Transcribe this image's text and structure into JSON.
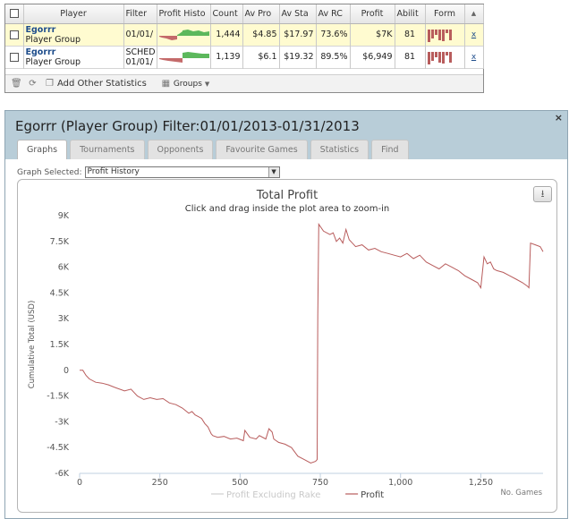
{
  "player_table": {
    "headers": [
      "Player",
      "Filter",
      "Profit Histo",
      "Count",
      "Av Pro",
      "Av Sta",
      "Av RC",
      "Profit",
      "Abilit",
      "Form"
    ],
    "rows": [
      {
        "player": "Egorrr",
        "group": "Player Group",
        "filter_line1": "01/01/",
        "filter_line2": "",
        "count": "1,444",
        "av_profit": "$4.85",
        "av_stake": "$17.97",
        "av_roi": "73.6%",
        "profit": "$7K",
        "ability": "81",
        "action": "x",
        "selected": true,
        "form": [
          14,
          10,
          6,
          12,
          13,
          4,
          12
        ]
      },
      {
        "player": "Egorrr",
        "group": "Player Group",
        "filter_line1": "SCHED",
        "filter_line2": "01/01/",
        "count": "1,139",
        "av_profit": "$6.1",
        "av_stake": "$19.32",
        "av_roi": "89.5%",
        "profit": "$6,949",
        "ability": "81",
        "action": "x",
        "selected": false,
        "form": [
          14,
          10,
          6,
          12,
          13,
          4,
          12
        ]
      }
    ],
    "toolbar": {
      "add_stats_label": "Add Other Statistics",
      "groups_label": "Groups"
    }
  },
  "window": {
    "title": "Egorrr (Player Group) Filter:01/01/2013-01/31/2013",
    "close_label": "×",
    "tabs": [
      "Graphs",
      "Tournaments",
      "Opponents",
      "Favourite Games",
      "Statistics",
      "Find"
    ],
    "active_tab": "Graphs",
    "graph_selected_label": "Graph Selected:",
    "graph_selected_value": "Profit History"
  },
  "chart_data": {
    "type": "line",
    "title": "Total Profit",
    "subtitle": "Click and drag inside the plot area to zoom-in",
    "ylabel": "Cumulative Total (USD)",
    "xlabel": "No. Games",
    "ylim": [
      -6000,
      9000
    ],
    "xlim": [
      0,
      1444
    ],
    "x_ticks": [
      0,
      250,
      500,
      750,
      1000,
      1250
    ],
    "x_tick_labels": [
      "0",
      "250",
      "500",
      "750",
      "1,000",
      "1,250"
    ],
    "y_ticks": [
      -6000,
      -4500,
      -3000,
      -1500,
      0,
      1500,
      3000,
      4500,
      6000,
      7500,
      9000
    ],
    "y_tick_labels": [
      "-6K",
      "-4.5K",
      "-3K",
      "-1.5K",
      "0",
      "1.5K",
      "3K",
      "4.5K",
      "6K",
      "7.5K",
      "9K"
    ],
    "grid": false,
    "legend": "bottom-center",
    "series": [
      {
        "name": "Profit Excluding Rake",
        "color": "#cfcfcf",
        "x": [],
        "y": []
      },
      {
        "name": "Profit",
        "color": "#b85c5c",
        "x": [
          0,
          10,
          20,
          30,
          50,
          70,
          90,
          110,
          140,
          160,
          180,
          200,
          220,
          240,
          260,
          280,
          300,
          320,
          340,
          350,
          360,
          370,
          380,
          390,
          400,
          410,
          415,
          430,
          450,
          470,
          490,
          510,
          515,
          530,
          550,
          560,
          580,
          590,
          600,
          605,
          620,
          640,
          660,
          680,
          700,
          720,
          735,
          740,
          742,
          745,
          760,
          780,
          790,
          800,
          810,
          820,
          830,
          840,
          850,
          860,
          880,
          900,
          920,
          940,
          960,
          980,
          1000,
          1020,
          1040,
          1060,
          1080,
          1100,
          1120,
          1140,
          1160,
          1180,
          1200,
          1220,
          1240,
          1250,
          1260,
          1270,
          1280,
          1290,
          1300,
          1320,
          1340,
          1360,
          1380,
          1395,
          1400,
          1405,
          1420,
          1435,
          1444
        ],
        "y": [
          0,
          0,
          -300,
          -500,
          -700,
          -750,
          -850,
          -1000,
          -1200,
          -1100,
          -1500,
          -1700,
          -1600,
          -1700,
          -1650,
          -1900,
          -2000,
          -2200,
          -2500,
          -2400,
          -2600,
          -2700,
          -2800,
          -3100,
          -3300,
          -3700,
          -3800,
          -3900,
          -3850,
          -4000,
          -3950,
          -4100,
          -3500,
          -3900,
          -4000,
          -3800,
          -4000,
          -3400,
          -3600,
          -4000,
          -4200,
          -4300,
          -4500,
          -5000,
          -5200,
          -5400,
          -5300,
          -5200,
          3200,
          8500,
          8100,
          7900,
          8000,
          7500,
          7700,
          7400,
          8200,
          7600,
          7400,
          7200,
          7300,
          7000,
          7100,
          6900,
          6800,
          6700,
          6600,
          6800,
          6500,
          6700,
          6300,
          6100,
          5900,
          6200,
          6000,
          5800,
          5500,
          5300,
          5100,
          4800,
          6600,
          6200,
          6300,
          5900,
          5800,
          5700,
          5500,
          5300,
          5100,
          4900,
          4800,
          7400,
          7300,
          7200,
          6900
        ]
      }
    ]
  }
}
